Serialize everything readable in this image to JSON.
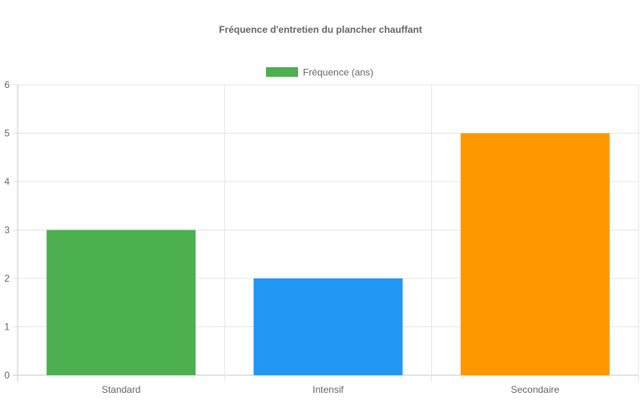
{
  "chart_data": {
    "type": "bar",
    "title": "Fréquence d'entretien du plancher chauffant",
    "categories": [
      "Standard",
      "Intensif",
      "Secondaire"
    ],
    "series": [
      {
        "name": "Fréquence (ans)",
        "values": [
          3,
          2,
          5
        ]
      }
    ],
    "bar_colors": [
      "#4caf50",
      "#2196f3",
      "#ff9800"
    ],
    "legend_color": "#4caf50",
    "ylim": [
      0,
      6
    ],
    "y_ticks": [
      0,
      1,
      2,
      3,
      4,
      5,
      6
    ],
    "xlabel": "",
    "ylabel": "",
    "grid": true,
    "legend_position": "top"
  }
}
